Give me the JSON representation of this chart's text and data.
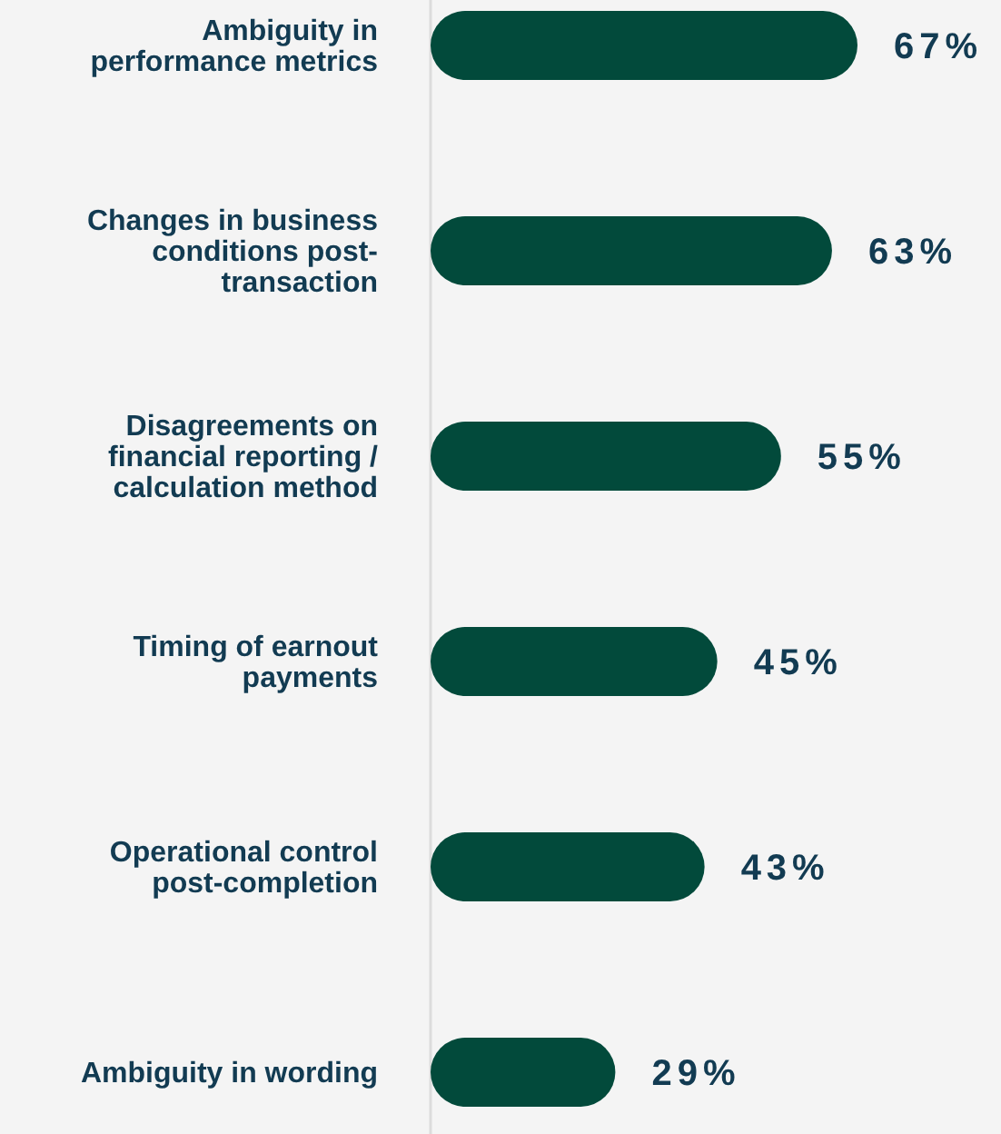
{
  "chart_data": {
    "type": "bar",
    "orientation": "horizontal",
    "categories": [
      "Ambiguity in performance metrics",
      "Changes in business conditions post-transaction",
      "Disagreements on financial reporting / calculation method",
      "Timing of earnout payments",
      "Operational control post-completion",
      "Ambiguity in wording"
    ],
    "values": [
      67,
      63,
      55,
      45,
      43,
      29
    ],
    "value_labels": [
      "67%",
      "63%",
      "55%",
      "45%",
      "43%",
      "29%"
    ],
    "color": "#024a3b"
  }
}
